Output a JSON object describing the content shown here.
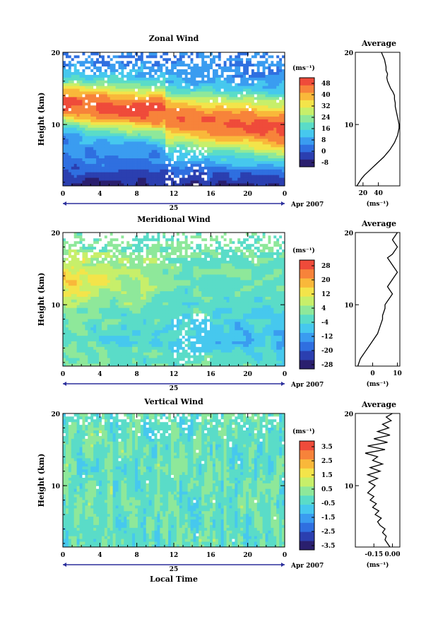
{
  "colors": {
    "scale": [
      "#2a1f6e",
      "#2b3fb0",
      "#2f6fe0",
      "#3a9cf0",
      "#46c8ee",
      "#5adcc8",
      "#8ee89a",
      "#c7ef6a",
      "#f3e44a",
      "#f9b83a",
      "#f7833a",
      "#ef4b3a"
    ],
    "missing": "#ffffff",
    "axis": "#000000",
    "bar_marker": "#2b2f9c"
  },
  "chart_data": [
    {
      "type": "heatmap",
      "title": "Zonal Wind",
      "xlabel": "",
      "ylabel": "Height (km)",
      "xlim": [
        0,
        24
      ],
      "ylim": [
        1.5,
        20
      ],
      "x_ticks": [
        "0",
        "4",
        "8",
        "12",
        "16",
        "20",
        "0"
      ],
      "y_ticks": [
        "10",
        "20"
      ],
      "date_marker": {
        "day": "25",
        "label": "Apr 2007"
      },
      "colorbar": {
        "unit": "(ms⁻¹)",
        "ticks": [
          "48",
          "40",
          "32",
          "24",
          "16",
          "8",
          "0",
          "-8"
        ],
        "range": [
          -8,
          52
        ]
      },
      "profile": {
        "title": "Average",
        "xlim": [
          10,
          68
        ],
        "x_ticks": [
          "20",
          "40"
        ],
        "y_ticks": [
          "10",
          "20"
        ],
        "xlabel": "(ms⁻¹)",
        "heights": [
          1.5,
          2,
          2.5,
          3,
          3.5,
          4,
          4.5,
          5,
          5.5,
          6,
          6.5,
          7,
          7.5,
          8,
          8.5,
          9,
          9.5,
          10,
          10.5,
          11,
          11.5,
          12,
          12.5,
          13,
          13.5,
          14,
          14.5,
          15,
          15.5,
          16,
          16.5,
          17,
          17.5,
          18,
          18.5,
          19,
          19.5,
          20
        ],
        "values": [
          12,
          15,
          18,
          22,
          27,
          32,
          37,
          42,
          47,
          51,
          55,
          58,
          61,
          63,
          65,
          66,
          67,
          67,
          66,
          65,
          64,
          63,
          62,
          62,
          61,
          61,
          59,
          56,
          54,
          52,
          51,
          52,
          50,
          50,
          49,
          48,
          46,
          44
        ]
      }
    },
    {
      "type": "heatmap",
      "title": "Meridional Wind",
      "xlabel": "",
      "ylabel": "Height (km)",
      "xlim": [
        0,
        24
      ],
      "ylim": [
        1.5,
        20
      ],
      "x_ticks": [
        "0",
        "4",
        "8",
        "12",
        "16",
        "20",
        "0"
      ],
      "y_ticks": [
        "10",
        "20"
      ],
      "date_marker": {
        "day": "25",
        "label": "Apr 2007"
      },
      "colorbar": {
        "unit": "(ms⁻¹)",
        "ticks": [
          "28",
          "20",
          "12",
          "4",
          "-4",
          "-12",
          "-20",
          "-28"
        ],
        "range": [
          -30,
          30
        ]
      },
      "profile": {
        "title": "Average",
        "xlim": [
          -7,
          11
        ],
        "x_ticks": [
          "0",
          "10"
        ],
        "y_ticks": [
          "10",
          "20"
        ],
        "xlabel": "(ms⁻¹)",
        "heights": [
          1.5,
          2,
          2.5,
          3,
          3.5,
          4,
          4.5,
          5,
          5.5,
          6,
          6.5,
          7,
          7.5,
          8,
          8.5,
          9,
          9.5,
          10,
          10.5,
          11,
          11.5,
          12,
          12.5,
          13,
          13.5,
          14,
          14.5,
          15,
          15.5,
          16,
          16.5,
          17,
          17.5,
          18,
          18.5,
          19,
          19.5,
          20
        ],
        "values": [
          -6,
          -5.5,
          -5,
          -4,
          -3,
          -2,
          -1,
          0,
          1,
          2,
          2.5,
          3,
          3.5,
          4,
          4,
          4.5,
          5,
          5,
          6,
          7,
          8,
          7,
          6,
          7,
          8,
          9,
          10,
          9,
          8,
          7,
          6,
          8,
          9,
          10,
          9,
          8,
          9,
          10
        ]
      }
    },
    {
      "type": "heatmap",
      "title": "Vertical Wind",
      "xlabel": "Local Time",
      "ylabel": "Height (km)",
      "xlim": [
        0,
        24
      ],
      "ylim": [
        1.5,
        20
      ],
      "x_ticks": [
        "0",
        "4",
        "8",
        "12",
        "16",
        "20",
        "0"
      ],
      "y_ticks": [
        "10",
        "20"
      ],
      "date_marker": {
        "day": "25",
        "label": "Apr 2007"
      },
      "colorbar": {
        "unit": "(ms⁻¹)",
        "ticks": [
          "3.5",
          "2.5",
          "1.5",
          "0.5",
          "-0.5",
          "-1.5",
          "-2.5",
          "-3.5"
        ],
        "range": [
          -4,
          4
        ]
      },
      "profile": {
        "title": "Average",
        "xlim": [
          -0.3,
          0.06
        ],
        "x_ticks": [
          "-0.15",
          "0.00"
        ],
        "y_ticks": [
          "10",
          "20"
        ],
        "xlabel": "(ms⁻¹)",
        "heights": [
          1.5,
          2,
          2.5,
          3,
          3.5,
          4,
          4.5,
          5,
          5.5,
          6,
          6.5,
          7,
          7.5,
          8,
          8.5,
          9,
          9.5,
          10,
          10.5,
          11,
          11.5,
          12,
          12.5,
          13,
          13.5,
          14,
          14.5,
          15,
          15.5,
          16,
          16.5,
          17,
          17.5,
          18,
          18.5,
          19,
          19.5,
          20
        ],
        "values": [
          -0.02,
          -0.04,
          -0.06,
          -0.05,
          -0.08,
          -0.06,
          -0.1,
          -0.12,
          -0.09,
          -0.14,
          -0.11,
          -0.16,
          -0.13,
          -0.18,
          -0.15,
          -0.2,
          -0.17,
          -0.14,
          -0.19,
          -0.12,
          -0.2,
          -0.1,
          -0.18,
          -0.08,
          -0.16,
          -0.12,
          -0.22,
          -0.06,
          -0.2,
          -0.04,
          -0.15,
          -0.02,
          -0.12,
          -0.03,
          -0.08,
          -0.01,
          -0.05,
          0.0
        ]
      }
    }
  ]
}
